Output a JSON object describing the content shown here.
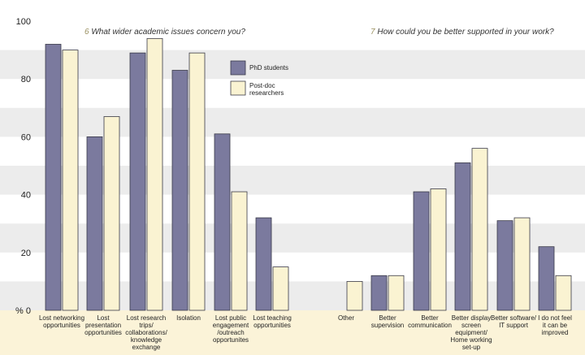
{
  "chart_data": {
    "type": "bar",
    "y_axis_unit": "% 0",
    "ylim": [
      0,
      100
    ],
    "yticks": [
      20,
      40,
      60,
      80,
      100
    ],
    "questions": [
      {
        "number": "6",
        "text": "What wider academic issues concern you?"
      },
      {
        "number": "7",
        "text": "How could you be better supported in your work?"
      }
    ],
    "categories": [
      [
        "Lost networking",
        "opportunities"
      ],
      [
        "Lost",
        "presentation",
        "opportunities"
      ],
      [
        "Lost research",
        "trips/",
        "collaborations/",
        "knowledge",
        "exchange"
      ],
      [
        "Isolation"
      ],
      [
        "Lost public",
        "engagement",
        "/outreach",
        "opportunites"
      ],
      [
        "Lost teaching",
        "opportunities"
      ],
      [
        "Other"
      ],
      [
        "Better",
        "supervision"
      ],
      [
        "Better",
        "communication"
      ],
      [
        "Better display",
        "screen",
        "equipment/",
        "Home working",
        "set-up"
      ],
      [
        "Better software/",
        "IT support"
      ],
      [
        "I do not feel",
        "it can be",
        "improved"
      ]
    ],
    "series": [
      {
        "name": "PhD students",
        "color": "#7b7a9e",
        "values": [
          92,
          60,
          89,
          83,
          61,
          32,
          null,
          12,
          41,
          51,
          31,
          22
        ]
      },
      {
        "name": "Post-doc researchers",
        "color": "#faf3d2",
        "legend_lines": [
          "Post-doc",
          "researchers"
        ],
        "values": [
          90,
          67,
          94,
          89,
          41,
          15,
          10,
          12,
          42,
          56,
          32,
          12
        ]
      }
    ],
    "grid": "alternating horizontal bands",
    "legend_position": "top-center"
  }
}
